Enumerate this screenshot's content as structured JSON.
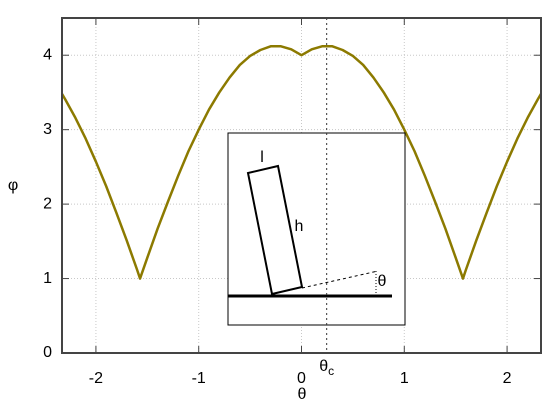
{
  "chart_data": {
    "type": "line",
    "x_label": "θ",
    "y_label": "φ",
    "color": "#8c7a00",
    "xlim": [
      -2.33,
      2.33
    ],
    "ylim": [
      0,
      4.5
    ],
    "xticks": [
      -2,
      -1,
      0,
      1,
      2
    ],
    "yticks": [
      0,
      1,
      2,
      3,
      4
    ],
    "grid": true,
    "critical_angle": {
      "value": 0.245,
      "symbol": "θ",
      "subscript": "c"
    },
    "x": [
      -2.33,
      -2.3,
      -2.2,
      -2.1,
      -2.0,
      -1.9,
      -1.8,
      -1.7,
      -1.6,
      -1.5708,
      -1.5,
      -1.4,
      -1.3,
      -1.2,
      -1.1,
      -1.0,
      -0.9,
      -0.8,
      -0.7,
      -0.6,
      -0.5,
      -0.4,
      -0.3,
      -0.245,
      -0.2,
      -0.1,
      0,
      0.1,
      0.2,
      0.245,
      0.3,
      0.4,
      0.5,
      0.6,
      0.7,
      0.8,
      0.9,
      1.0,
      1.1,
      1.2,
      1.3,
      1.4,
      1.5,
      1.5708,
      1.6,
      1.7,
      1.8,
      1.9,
      2.0,
      2.1,
      2.2,
      2.3,
      2.33
    ],
    "values": [
      3.48,
      3.41,
      3.16,
      2.88,
      2.57,
      2.24,
      1.88,
      1.51,
      1.12,
      1.0,
      1.28,
      1.67,
      2.03,
      2.38,
      2.71,
      3.0,
      3.27,
      3.5,
      3.7,
      3.87,
      3.99,
      4.07,
      4.12,
      4.12,
      4.12,
      4.08,
      4.0,
      4.08,
      4.12,
      4.12,
      4.12,
      4.07,
      3.99,
      3.87,
      3.7,
      3.5,
      3.27,
      3.0,
      2.71,
      2.38,
      2.03,
      1.67,
      1.28,
      1.0,
      1.12,
      1.51,
      1.88,
      2.24,
      2.57,
      2.88,
      3.16,
      3.41,
      3.48
    ],
    "inset": {
      "width_label": "l",
      "height_label": "h",
      "angle_label": "θ"
    }
  }
}
